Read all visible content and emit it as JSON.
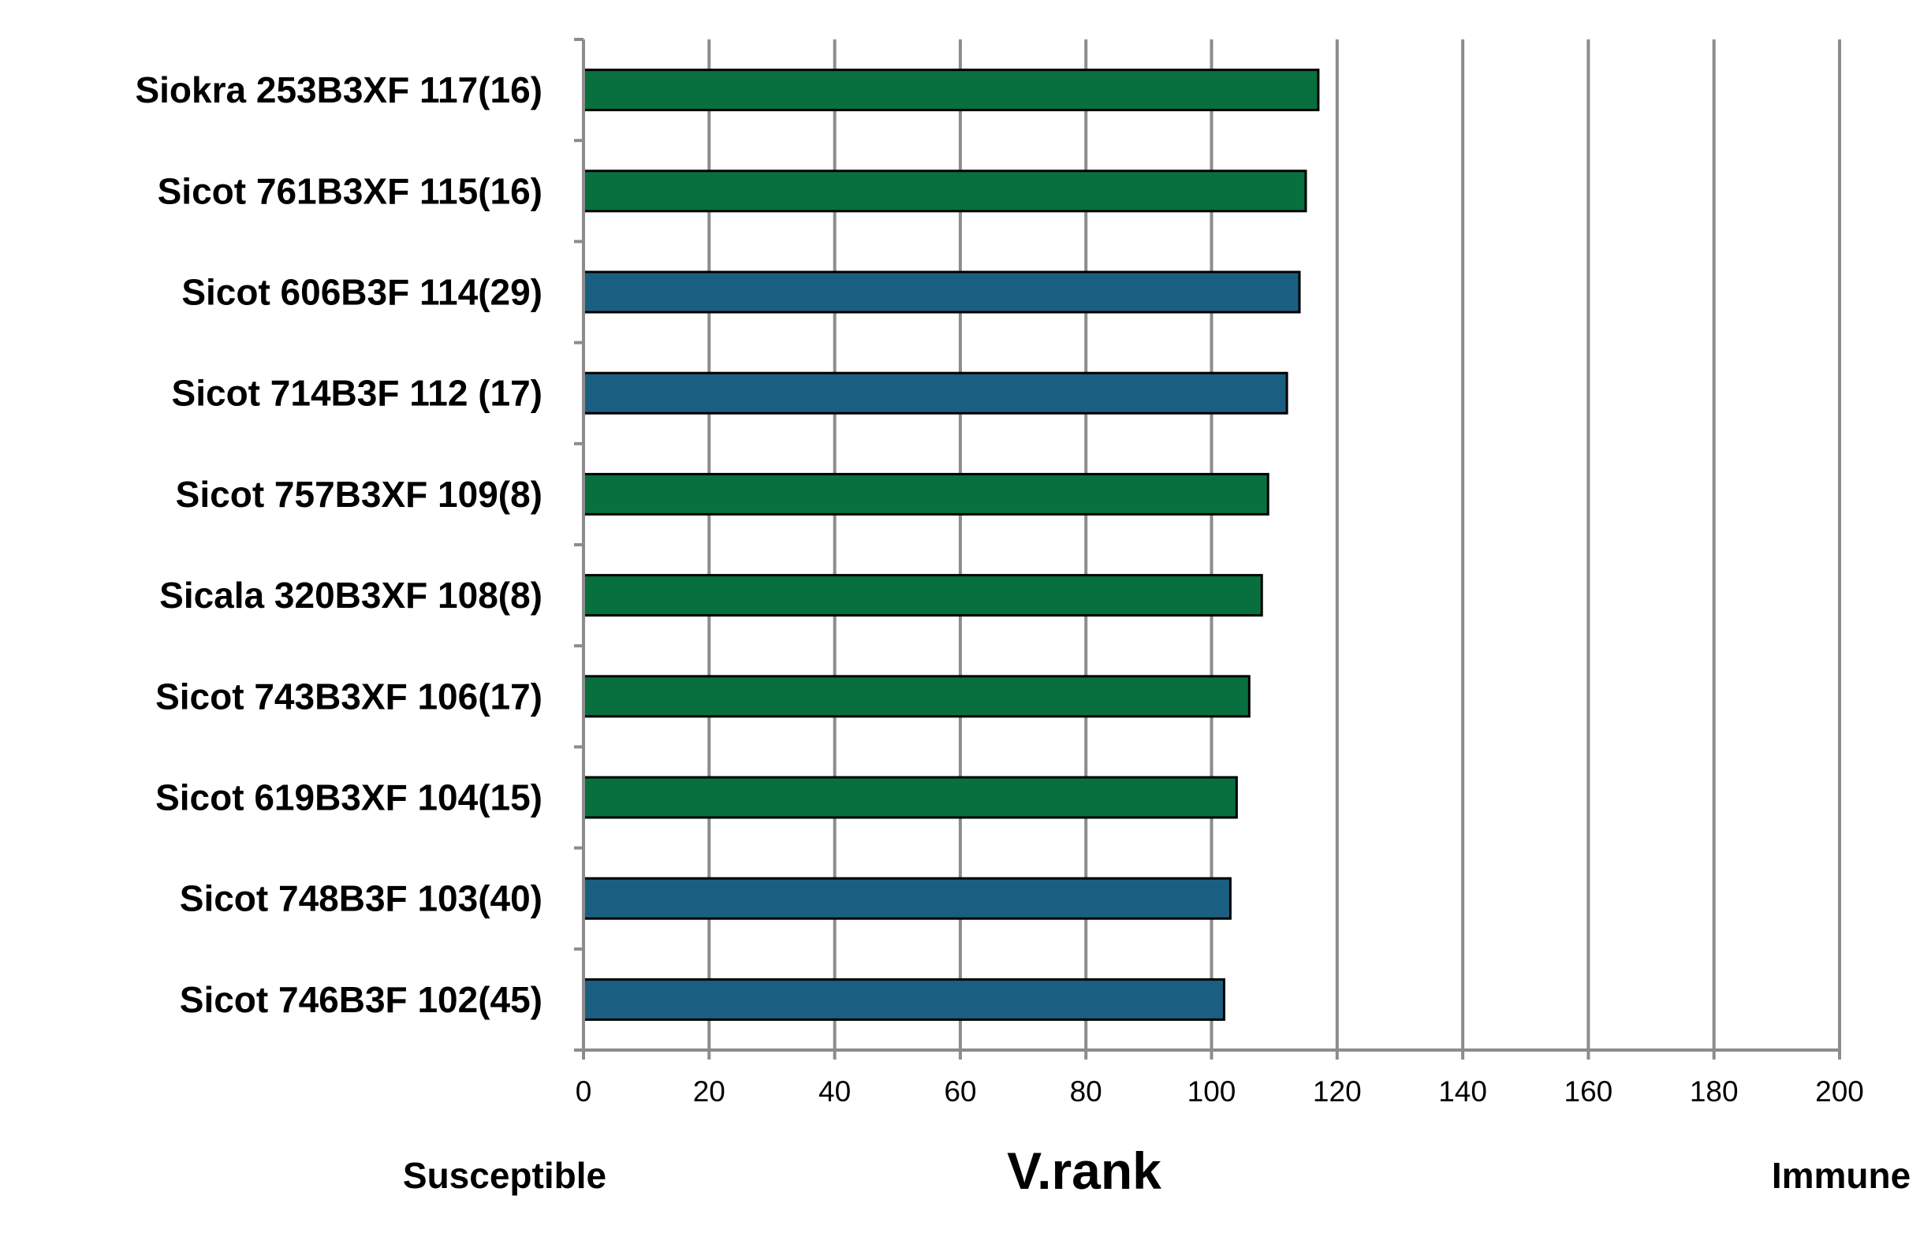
{
  "chart_data": {
    "type": "bar",
    "orientation": "horizontal",
    "categories": [
      "Siokra 253B3XF 117(16)",
      "Sicot 761B3XF 115(16)",
      "Sicot 606B3F 114(29)",
      "Sicot 714B3F 112 (17)",
      "Sicot 757B3XF 109(8)",
      "Sicala 320B3XF 108(8)",
      "Sicot 743B3XF 106(17)",
      "Sicot 619B3XF 104(15)",
      "Sicot 748B3F 103(40)",
      "Sicot 746B3F 102(45)"
    ],
    "values": [
      117,
      115,
      114,
      112,
      109,
      108,
      106,
      104,
      103,
      102
    ],
    "bar_colors": [
      "#08703f",
      "#08703f",
      "#1a5f82",
      "#1a5f82",
      "#08703f",
      "#08703f",
      "#08703f",
      "#08703f",
      "#1a5f82",
      "#1a5f82"
    ],
    "xlabel": "V.rank",
    "xlim": [
      0,
      200
    ],
    "xticks": [
      0,
      20,
      40,
      60,
      80,
      100,
      120,
      140,
      160,
      180,
      200
    ],
    "grid": "vertical",
    "annotations": {
      "left": "Susceptible",
      "right": "Immune"
    }
  }
}
